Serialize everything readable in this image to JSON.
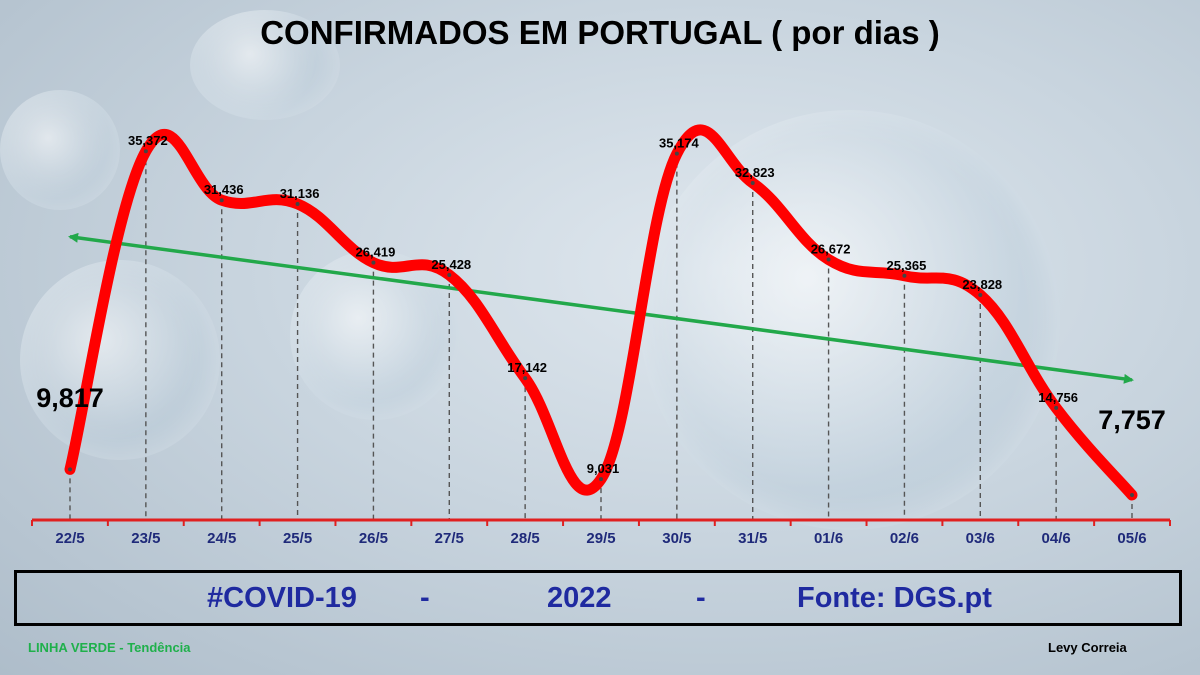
{
  "title": "CONFIRMADOS EM PORTUGAL ( por dias )",
  "footer": {
    "hashtag": "#COVID-19",
    "separator": "-",
    "year": "2022",
    "source": "Fonte: DGS.pt"
  },
  "trend_note": "LINHA VERDE  -  Tendência",
  "author": "Levy Correia",
  "colors": {
    "line": "#ff0000",
    "trend": "#22a84a",
    "axis": "#e02020",
    "tick_label": "#1f2a7a",
    "footer_text": "#1f2aa0",
    "note_text": "#1fb04b"
  },
  "chart_data": {
    "type": "line",
    "categories": [
      "22/5",
      "23/5",
      "24/5",
      "25/5",
      "26/5",
      "27/5",
      "28/5",
      "29/5",
      "30/5",
      "31/5",
      "01/6",
      "02/6",
      "03/6",
      "04/6",
      "05/6"
    ],
    "values": [
      9817,
      35372,
      31436,
      31136,
      26419,
      25428,
      17142,
      9031,
      35174,
      32823,
      26672,
      25365,
      23828,
      14756,
      7757
    ],
    "data_labels": [
      "9,817",
      "35,372",
      "31,436",
      "31,136",
      "26,419",
      "25,428",
      "17,142",
      "9,031",
      "35,174",
      "32,823",
      "26,672",
      "25,365",
      "23,828",
      "14,756",
      "7,757"
    ],
    "trend_line": {
      "color": "green",
      "direction": "decreasing",
      "start": 28500,
      "end": 17000
    },
    "title": "CONFIRMADOS EM PORTUGAL ( por dias )",
    "xlabel": "",
    "ylabel": "",
    "y_axis_visible": false,
    "grid": false,
    "drop_lines": "dashed"
  }
}
